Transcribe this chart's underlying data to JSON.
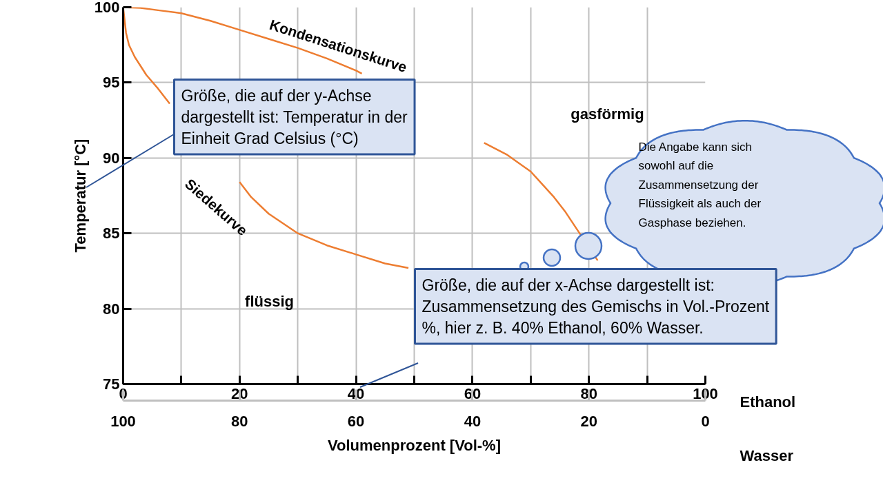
{
  "chart_data": {
    "type": "line",
    "xlabel": "Volumenprozent [Vol-%]",
    "ylabel": "Temperatur [°C]",
    "xlim": [
      0,
      100
    ],
    "ylim": [
      75,
      100
    ],
    "xticks": [
      0,
      {
        "value": 10,
        "label": null
      },
      20,
      {
        "value": 30,
        "label": null
      },
      40,
      {
        "value": 50,
        "label": null
      },
      60,
      {
        "value": 70,
        "label": null
      },
      80,
      {
        "value": 90,
        "label": null
      },
      100
    ],
    "yticks": [
      75,
      80,
      85,
      90,
      95,
      100
    ],
    "x2lim": [
      100,
      0
    ],
    "x2ticks": [
      100,
      80,
      60,
      40,
      20,
      0
    ],
    "grid": true,
    "series": [
      {
        "color": "#ed7d31",
        "x": [
          0,
          3,
          6,
          10,
          15,
          20,
          25,
          30,
          35,
          40,
          41,
          52,
          62,
          66,
          70,
          74,
          76,
          81.5
        ],
        "values": [
          100,
          99.95,
          99.8,
          99.6,
          99.1,
          98.5,
          97.9,
          97.3,
          96.6,
          95.8,
          95.6,
          null,
          91.0,
          90.2,
          89.1,
          87.4,
          86.4,
          83.2
        ]
      },
      {
        "color": "#ed7d31",
        "x": [
          0,
          0.5,
          1,
          2,
          4,
          6,
          8,
          14,
          20,
          22,
          25,
          30,
          35,
          40,
          45,
          49
        ],
        "values": [
          100,
          98.3,
          97.5,
          96.7,
          95.5,
          94.6,
          93.6,
          null,
          88.4,
          87.4,
          86.3,
          85.0,
          84.2,
          83.6,
          83.0,
          82.7
        ]
      }
    ],
    "annotations": [
      "Ethanol",
      "Wasser",
      "Kondensationskurve",
      "Siedekurve",
      "gasförmig",
      "flüssig",
      "Größe, die auf der y-Achse\ndargestellt ist: Temperatur in der\nEinheit Grad Celsius (°C)",
      "Größe, die auf der x-Achse dargestellt ist:\nZusammensetzung des Gemischs in Vol.-Prozent\n%, hier z. B. 40% Ethanol, 60% Wasser.",
      "Die Angabe kann sich\nsowohl auf die\nZusammensetzung der\nFlüssigkeit als auch der\nGasphase beziehen."
    ]
  }
}
